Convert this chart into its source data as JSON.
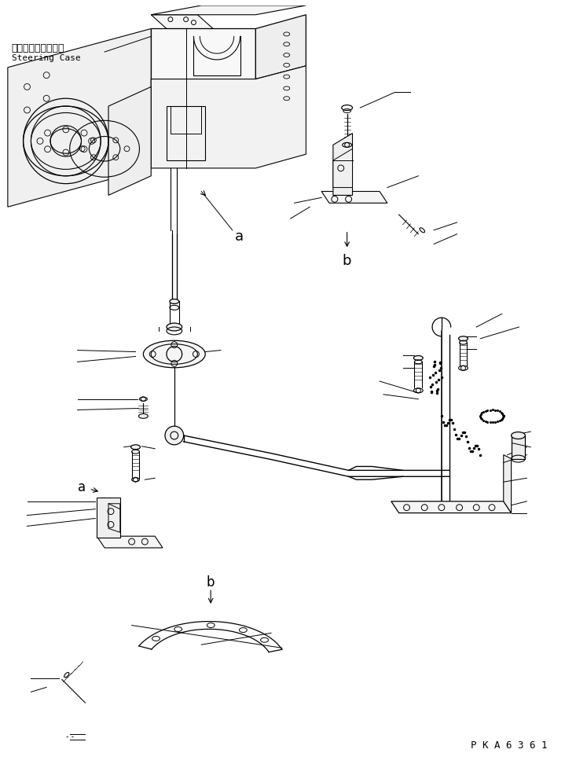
{
  "background_color": "#ffffff",
  "line_color": "#000000",
  "text_color": "#000000",
  "text_steering_case_jp": "ステアリングケース",
  "text_steering_case_en": "Steering Case",
  "watermark": "P K A 6 3 6 1",
  "label_a1": "a",
  "label_b1": "b",
  "label_a2": "a",
  "label_b2": "b"
}
